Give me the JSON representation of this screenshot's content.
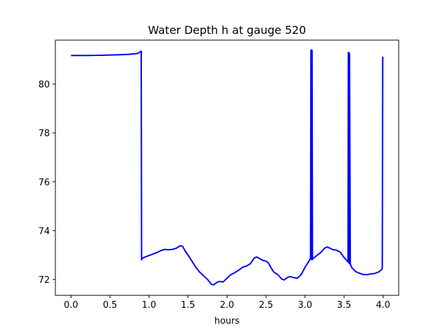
{
  "chart_data": {
    "type": "line",
    "title": "Water Depth h at gauge 520",
    "xlabel": "hours",
    "ylabel": "",
    "xlim": [
      -0.2,
      4.2
    ],
    "ylim": [
      71.35,
      81.8
    ],
    "grid": false,
    "legend": "none",
    "x_ticks": [
      0.0,
      0.5,
      1.0,
      1.5,
      2.0,
      2.5,
      3.0,
      3.5,
      4.0
    ],
    "x_tick_labels": [
      "0.0",
      "0.5",
      "1.0",
      "1.5",
      "2.0",
      "2.5",
      "3.0",
      "3.5",
      "4.0"
    ],
    "y_ticks": [
      72,
      74,
      76,
      78,
      80
    ],
    "y_tick_labels": [
      "72",
      "74",
      "76",
      "78",
      "80"
    ],
    "colors": {
      "line": "#0000ff",
      "axes": "#000000",
      "background": "#ffffff"
    },
    "series": [
      {
        "x": [
          0.0,
          0.2,
          0.4,
          0.6,
          0.75,
          0.85,
          0.88,
          0.9,
          0.905,
          0.91,
          0.92,
          0.95,
          1.0,
          1.05,
          1.1,
          1.15,
          1.2,
          1.25,
          1.3,
          1.35,
          1.4,
          1.43,
          1.46,
          1.5,
          1.55,
          1.6,
          1.65,
          1.7,
          1.75,
          1.8,
          1.83,
          1.87,
          1.9,
          1.95,
          2.0,
          2.05,
          2.1,
          2.15,
          2.2,
          2.25,
          2.3,
          2.35,
          2.38,
          2.42,
          2.46,
          2.5,
          2.53,
          2.56,
          2.6,
          2.65,
          2.7,
          2.73,
          2.76,
          2.8,
          2.85,
          2.9,
          2.95,
          3.0,
          3.05,
          3.07,
          3.075,
          3.08,
          3.085,
          3.09,
          3.095,
          3.1,
          3.15,
          3.2,
          3.25,
          3.28,
          3.32,
          3.36,
          3.4,
          3.45,
          3.5,
          3.55,
          3.555,
          3.56,
          3.565,
          3.57,
          3.58,
          3.6,
          3.65,
          3.7,
          3.75,
          3.8,
          3.85,
          3.9,
          3.95,
          3.98,
          3.99,
          3.995,
          4.0
        ],
        "y": [
          81.17,
          81.17,
          81.18,
          81.2,
          81.22,
          81.25,
          81.3,
          81.35,
          72.8,
          72.85,
          72.88,
          72.92,
          72.98,
          73.04,
          73.1,
          73.18,
          73.23,
          73.22,
          73.23,
          73.28,
          73.38,
          73.36,
          73.18,
          73.0,
          72.75,
          72.5,
          72.3,
          72.15,
          72.0,
          71.8,
          71.78,
          71.88,
          71.92,
          71.9,
          72.05,
          72.2,
          72.28,
          72.38,
          72.5,
          72.55,
          72.65,
          72.88,
          72.92,
          72.85,
          72.78,
          72.75,
          72.68,
          72.5,
          72.3,
          72.2,
          72.02,
          71.98,
          72.05,
          72.12,
          72.08,
          72.05,
          72.2,
          72.5,
          72.75,
          72.88,
          81.35,
          81.4,
          72.8,
          81.38,
          72.82,
          72.85,
          72.98,
          73.1,
          73.28,
          73.33,
          73.28,
          73.22,
          73.2,
          73.12,
          72.9,
          72.72,
          81.3,
          81.28,
          72.65,
          81.25,
          72.62,
          72.48,
          72.32,
          72.25,
          72.2,
          72.2,
          72.23,
          72.25,
          72.32,
          72.4,
          72.45,
          81.1,
          81.05
        ]
      }
    ]
  }
}
